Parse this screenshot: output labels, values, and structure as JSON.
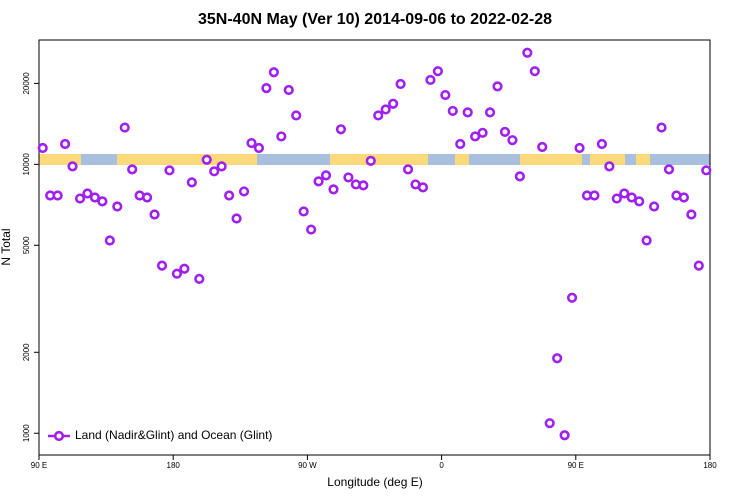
{
  "chart_data": {
    "type": "scatter",
    "title": "35N-40N May (Ver 10)   2014-09-06 to 2022-02-28",
    "x_label": "Longitude (deg E)",
    "y_label": "N Total",
    "xlim": [
      90,
      540
    ],
    "xticks": [
      {
        "value": 90,
        "label": "90 E"
      },
      {
        "value": 180,
        "label": "180"
      },
      {
        "value": 270,
        "label": "90 W"
      },
      {
        "value": 360,
        "label": "0"
      },
      {
        "value": 450,
        "label": "90 E"
      },
      {
        "value": 540,
        "label": "180"
      }
    ],
    "ylim": [
      830,
      29000
    ],
    "yticks": [
      1000,
      2000,
      5000,
      10000,
      20000
    ],
    "y_scale": "log",
    "legend": "bottom-left",
    "series": [
      {
        "name": "Land (Nadir&Glint) and Ocean (Glint)",
        "color": "#a020f0",
        "x": [
          92.5,
          97.5,
          102.5,
          107.5,
          112.5,
          117.5,
          122.5,
          127.5,
          132.5,
          137.5,
          142.5,
          147.5,
          152.5,
          157.5,
          162.5,
          167.5,
          172.5,
          177.5,
          182.5,
          187.5,
          192.5,
          197.5,
          202.5,
          207.5,
          212.5,
          217.5,
          222.5,
          227.5,
          232.5,
          237.5,
          242.5,
          247.5,
          252.5,
          257.5,
          262.5,
          267.5,
          272.5,
          277.5,
          282.5,
          287.5,
          292.5,
          297.5,
          302.5,
          307.5,
          312.5,
          317.5,
          322.5,
          327.5,
          332.5,
          337.5,
          342.5,
          347.5,
          352.5,
          357.5,
          362.5,
          367.5,
          372.5,
          377.5,
          382.5,
          387.5,
          392.5,
          397.5,
          402.5,
          407.5,
          412.5,
          417.5,
          422.5,
          427.5,
          432.5,
          437.5,
          442.5,
          447.5,
          452.5,
          457.5,
          462.5,
          467.5,
          472.5,
          477.5,
          482.5,
          487.5,
          492.5,
          497.5,
          502.5,
          507.5,
          512.5,
          517.5,
          522.5,
          527.5,
          532.5,
          537.5
        ],
        "values": [
          11500,
          7660,
          7660,
          11900,
          9830,
          7460,
          7790,
          7530,
          7280,
          5210,
          6970,
          13700,
          9580,
          7660,
          7530,
          6510,
          4200,
          9500,
          3920,
          4090,
          8570,
          3750,
          10400,
          9420,
          9830,
          7660,
          6290,
          7930,
          12000,
          11500,
          19200,
          22000,
          12700,
          18900,
          15200,
          6680,
          5720,
          8640,
          9100,
          8070,
          13500,
          8940,
          8420,
          8350,
          10300,
          15200,
          16000,
          16800,
          19900,
          9580,
          8420,
          8210,
          20600,
          22200,
          18100,
          15800,
          11900,
          15600,
          12700,
          13100,
          15600,
          19500,
          13200,
          12300,
          9020,
          26000,
          22200,
          11600,
          1090,
          1900,
          983,
          3190,
          11500,
          7660,
          7660,
          11900,
          9830,
          7460,
          7790,
          7530,
          7280,
          5210,
          6970,
          13700,
          9580,
          7660,
          7530,
          6510,
          4200,
          9500
        ]
      }
    ]
  }
}
